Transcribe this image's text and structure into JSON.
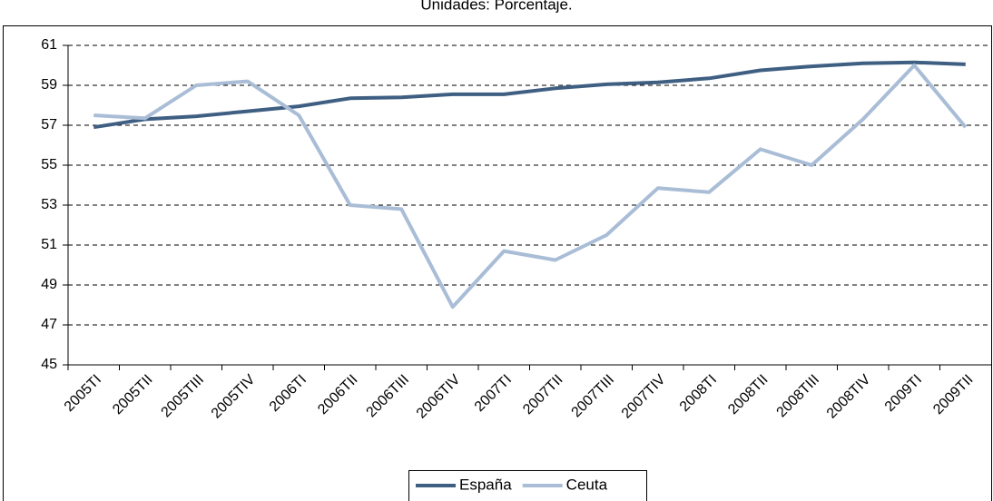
{
  "chart_data": {
    "type": "line",
    "title": "Unidades: Porcentaje.",
    "categories": [
      "2005TI",
      "2005TII",
      "2005TIII",
      "2005TIV",
      "2006TI",
      "2006TII",
      "2006TIII",
      "2006TIV",
      "2007TI",
      "2007TII",
      "2007TIII",
      "2007TIV",
      "2008TI",
      "2008TII",
      "2008TIII",
      "2008TIV",
      "2009TI",
      "2009TII"
    ],
    "series": [
      {
        "name": "España",
        "color": "#3f5f82",
        "values": [
          56.9,
          57.3,
          57.45,
          57.7,
          57.95,
          58.35,
          58.4,
          58.55,
          58.55,
          58.85,
          59.05,
          59.15,
          59.35,
          59.75,
          59.95,
          60.1,
          60.15,
          60.05
        ]
      },
      {
        "name": "Ceuta",
        "color": "#a9bdd6",
        "values": [
          57.5,
          57.35,
          59.0,
          59.2,
          57.5,
          53.0,
          52.8,
          47.9,
          50.7,
          50.25,
          51.5,
          53.85,
          53.65,
          55.8,
          55.0,
          57.3,
          60.0,
          56.9
        ]
      }
    ],
    "ylim": [
      45,
      61
    ],
    "yticks": [
      45,
      47,
      49,
      51,
      53,
      55,
      57,
      59,
      61
    ],
    "grid": true,
    "legend": "bottom"
  }
}
